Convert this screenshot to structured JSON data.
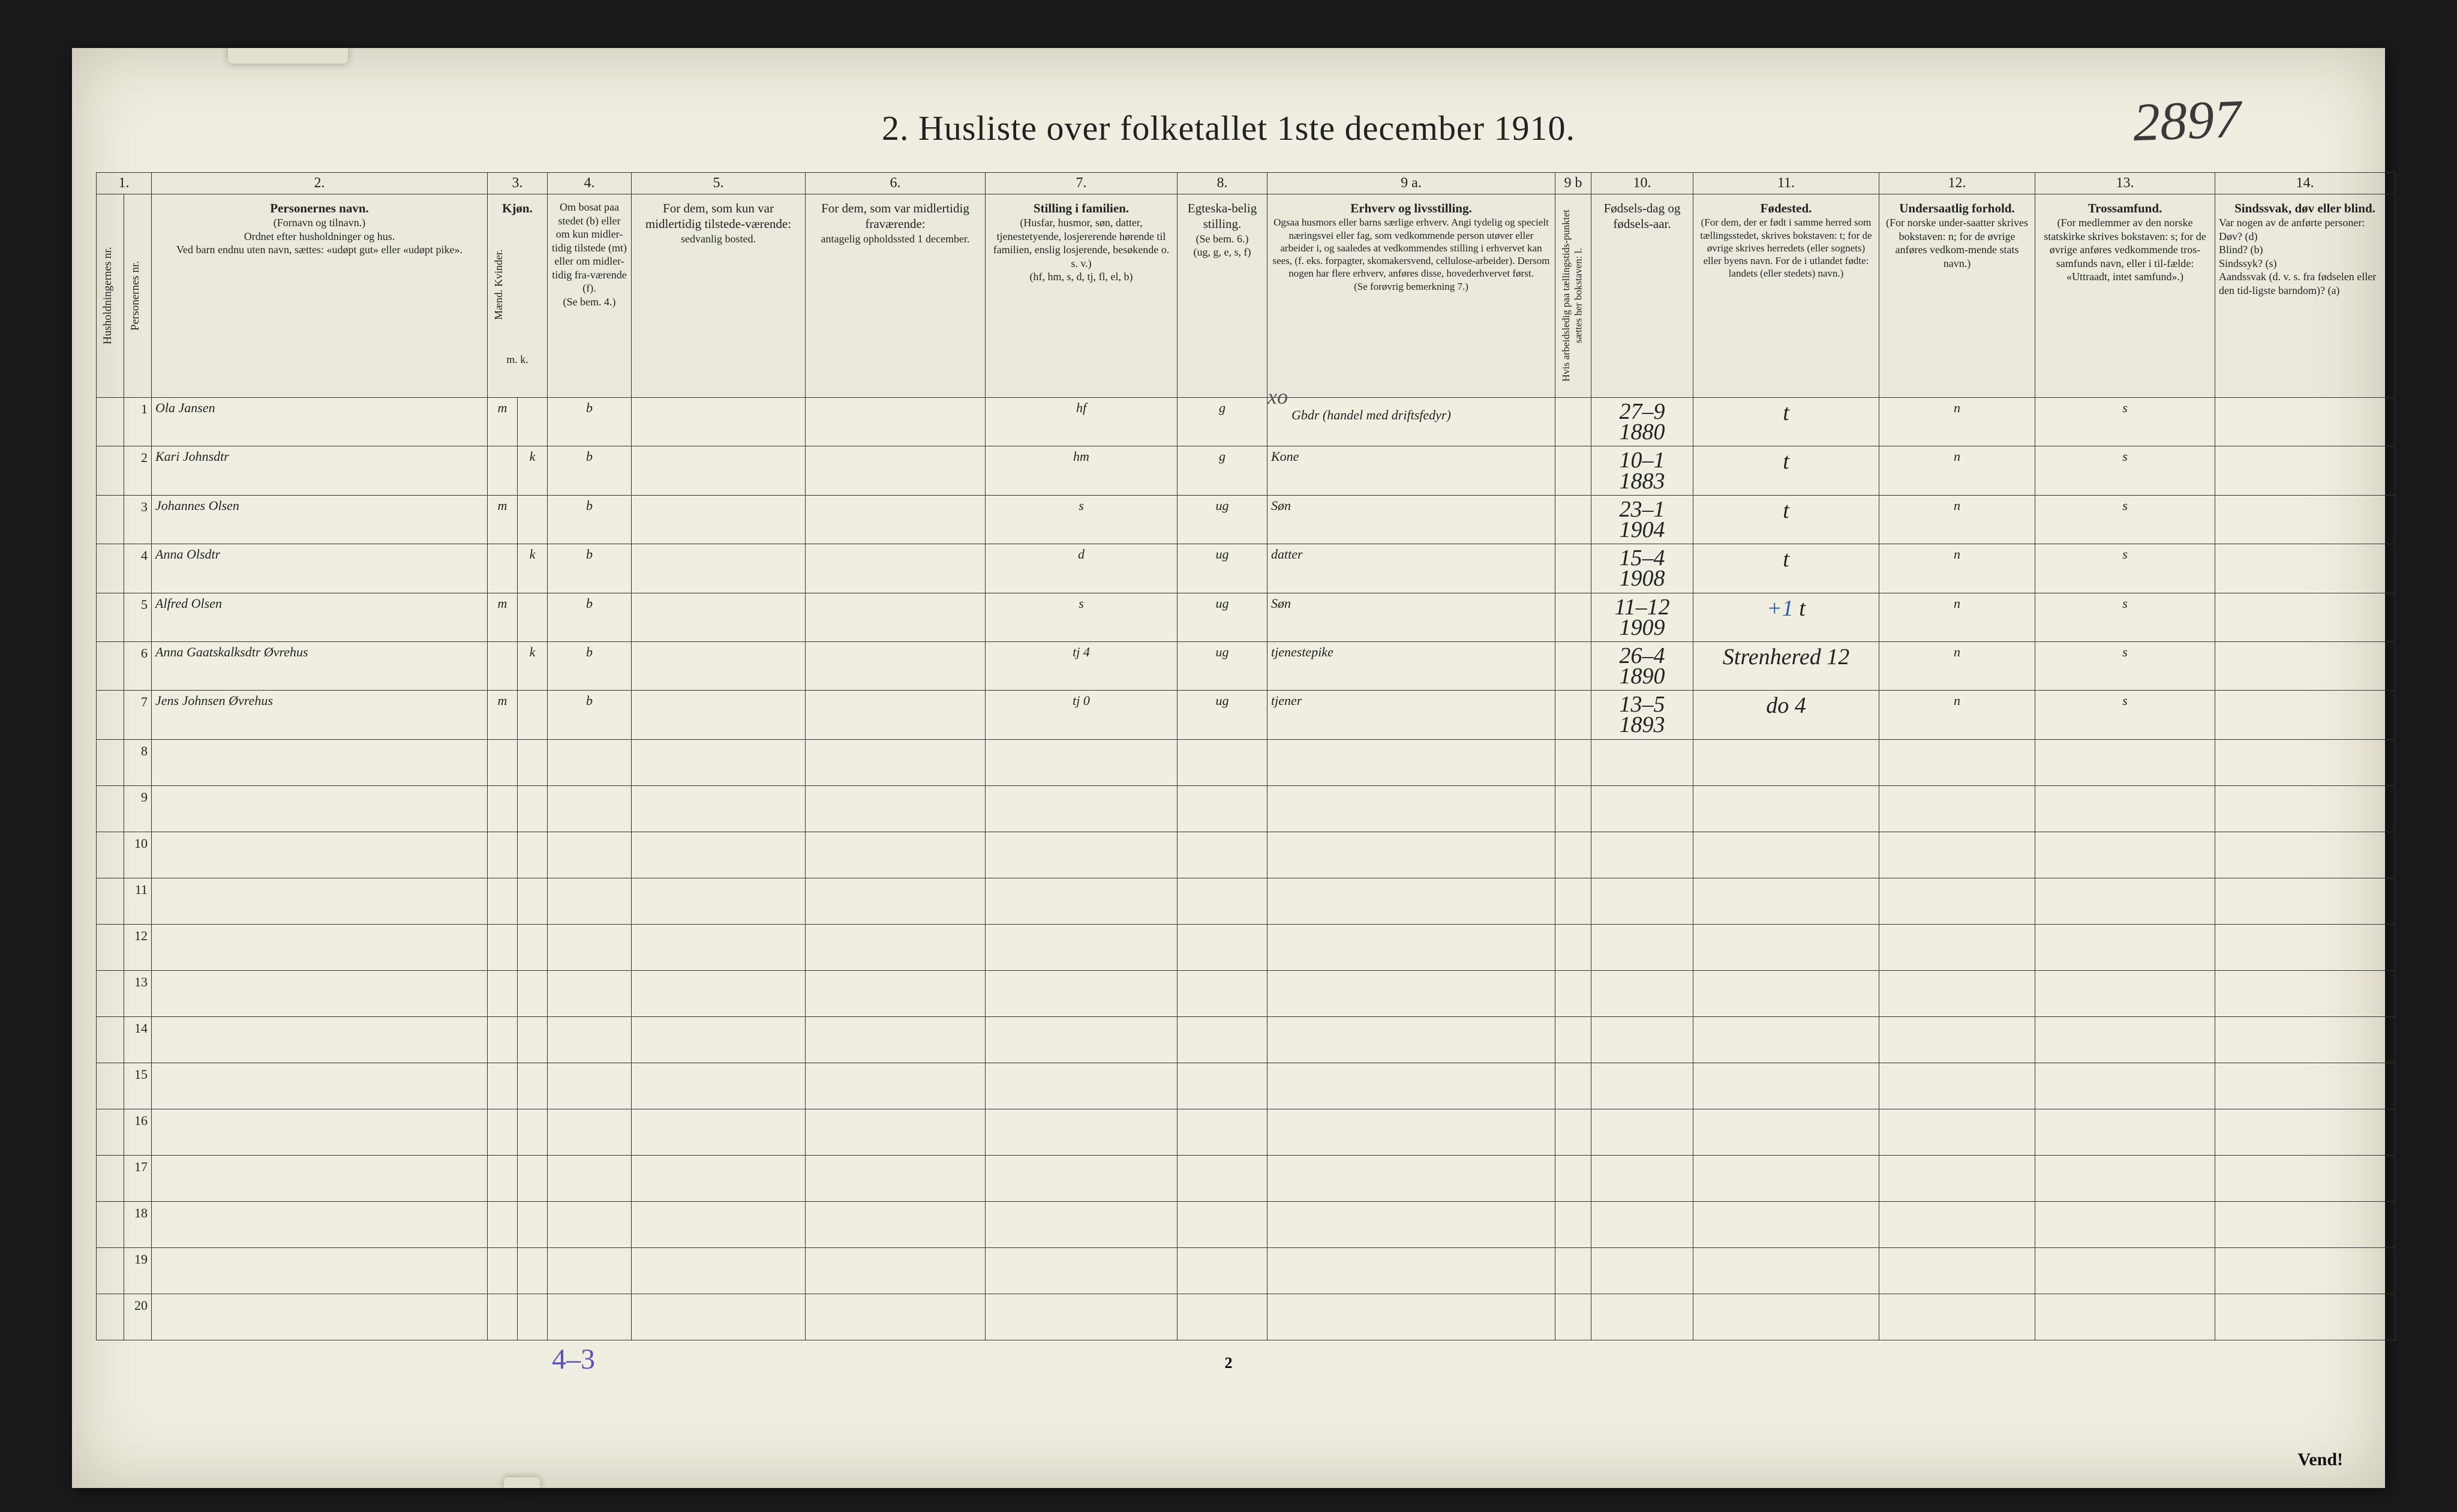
{
  "page": {
    "title": "2.  Husliste over folketallet 1ste december 1910.",
    "topRightHand": "2897",
    "pageNumber": "2",
    "vend": "Vend!",
    "footerHand": "4–3"
  },
  "colNumbers": [
    "1.",
    "2.",
    "3.",
    "4.",
    "5.",
    "6.",
    "7.",
    "8.",
    "9 a.",
    "9 b",
    "10.",
    "11.",
    "12.",
    "13.",
    "14."
  ],
  "headers": {
    "col1a": "Husholdningernes nr.",
    "col1b": "Personernes nr.",
    "col2_title": "Personernes navn.",
    "col2_sub": "(Fornavn og tilnavn.)\nOrdnet efter husholdninger og hus.\nVed barn endnu uten navn, sættes: «udøpt gut» eller «udøpt pike».",
    "col3_title": "Kjøn.",
    "col3_sub": "Mænd.   Kvinder.",
    "col3_mk": "m.  k.",
    "col4_title": "Om bosat paa stedet (b) eller om kun midler-tidig tilstede (mt) eller om midler-tidig fra-værende (f).",
    "col4_sub": "(Se bem. 4.)",
    "col5_title": "For dem, som kun var midlertidig tilstede-værende:",
    "col5_sub": "sedvanlig bosted.",
    "col6_title": "For dem, som var midlertidig fraværende:",
    "col6_sub": "antagelig opholdssted 1 december.",
    "col7_title": "Stilling i familien.",
    "col7_sub": "(Husfar, husmor, søn, datter, tjenestetyende, losjererende hørende til familien, enslig losjerende, besøkende o. s. v.)\n(hf, hm, s, d, tj, fl, el, b)",
    "col8_title": "Egteska-belig stilling.",
    "col8_sub": "(Se bem. 6.)\n(ug, g, e, s, f)",
    "col9a_title": "Erhverv og livsstilling.",
    "col9a_sub": "Ogsaa husmors eller barns særlige erhverv. Angi tydelig og specielt næringsvei eller fag, som vedkommende person utøver eller arbeider i, og saaledes at vedkommendes stilling i erhvervet kan sees, (f. eks. forpagter, skomakersvend, cellulose-arbeider). Dersom nogen har flere erhverv, anføres disse, hovederhvervet først.\n(Se forøvrig bemerkning 7.)",
    "col9b": "Hvis arbeidsledig paa tællingstids-punktet sættes her bokstaven: l.",
    "col10_title": "Fødsels-dag og fødsels-aar.",
    "col11_title": "Fødested.",
    "col11_sub": "(For dem, der er født i samme herred som tællingsstedet, skrives bokstaven: t; for de øvrige skrives herredets (eller sognets) eller byens navn. For de i utlandet fødte: landets (eller stedets) navn.)",
    "col12_title": "Undersaatlig forhold.",
    "col12_sub": "(For norske under-saatter skrives bokstaven: n; for de øvrige anføres vedkom-mende stats navn.)",
    "col13_title": "Trossamfund.",
    "col13_sub": "(For medlemmer av den norske statskirke skrives bokstaven: s; for de øvrige anføres vedkommende tros-samfunds navn, eller i til-fælde: «Uttraadt, intet samfund».)",
    "col14_title": "Sindssvak, døv eller blind.",
    "col14_sub": "Var nogen av de anførte personer:\nDøv?        (d)\nBlind?      (b)\nSindssyk?  (s)\nAandssvak (d. v. s. fra fødselen eller den tid-ligste barndom)?  (a)"
  },
  "rows": [
    {
      "n": "1",
      "name": "Ola Jansen",
      "m": "m",
      "k": "",
      "b": "b",
      "c5": "",
      "c6": "",
      "fam": "hf",
      "egt": "g",
      "erhv": "Gbdr (handel med driftsfedyr)",
      "l": "",
      "dob": "27–9\n1880",
      "fsted": "t",
      "und": "n",
      "tros": "s",
      "c14": ""
    },
    {
      "n": "2",
      "name": "Kari Johnsdtr",
      "m": "",
      "k": "k",
      "b": "b",
      "c5": "",
      "c6": "",
      "fam": "hm",
      "egt": "g",
      "erhv": "Kone",
      "l": "",
      "dob": "10–1\n1883",
      "fsted": "t",
      "und": "n",
      "tros": "s",
      "c14": ""
    },
    {
      "n": "3",
      "name": "Johannes Olsen",
      "m": "m",
      "k": "",
      "b": "b",
      "c5": "",
      "c6": "",
      "fam": "s",
      "egt": "ug",
      "erhv": "Søn",
      "l": "",
      "dob": "23–1\n1904",
      "fsted": "t",
      "und": "n",
      "tros": "s",
      "c14": ""
    },
    {
      "n": "4",
      "name": "Anna Olsdtr",
      "m": "",
      "k": "k",
      "b": "b",
      "c5": "",
      "c6": "",
      "fam": "d",
      "egt": "ug",
      "erhv": "datter",
      "l": "",
      "dob": "15–4\n1908",
      "fsted": "t",
      "und": "n",
      "tros": "s",
      "c14": ""
    },
    {
      "n": "5",
      "name": "Alfred Olsen",
      "m": "m",
      "k": "",
      "b": "b",
      "c5": "",
      "c6": "",
      "fam": "s",
      "egt": "ug",
      "erhv": "Søn",
      "l": "",
      "dob": "11–12\n1909",
      "fsted": "+1 t",
      "und": "n",
      "tros": "s",
      "c14": ""
    },
    {
      "n": "6",
      "name": "Anna Gaatskalksdtr Øvrehus",
      "m": "",
      "k": "k",
      "b": "b",
      "c5": "",
      "c6": "",
      "fam": "tj   4",
      "egt": "ug",
      "erhv": "tjenestepike",
      "l": "",
      "dob": "26–4\n1890",
      "fsted": "Strenhered 12",
      "und": "n",
      "tros": "s",
      "c14": ""
    },
    {
      "n": "7",
      "name": "Jens Johnsen Øvrehus",
      "m": "m",
      "k": "",
      "b": "b",
      "c5": "",
      "c6": "",
      "fam": "tj   0",
      "egt": "ug",
      "erhv": "tjener",
      "l": "",
      "dob": "13–5\n1893",
      "fsted": "do  4",
      "und": "n",
      "tros": "s",
      "c14": ""
    }
  ],
  "emptyRows": [
    "8",
    "9",
    "10",
    "11",
    "12",
    "13",
    "14",
    "15",
    "16",
    "17",
    "18",
    "19",
    "20"
  ],
  "marks": {
    "xo": "xo"
  },
  "style": {
    "paperBg": "#f0eee1",
    "ink": "#222222",
    "handInk": "#2b2b2b",
    "purpleInk": "#5a4fc7",
    "blueInk": "#2a5db0",
    "border": "#333333",
    "titleFontSize": 58,
    "headerFontSize": 21,
    "rowNumFontSize": 24,
    "handFontSize": 44
  }
}
